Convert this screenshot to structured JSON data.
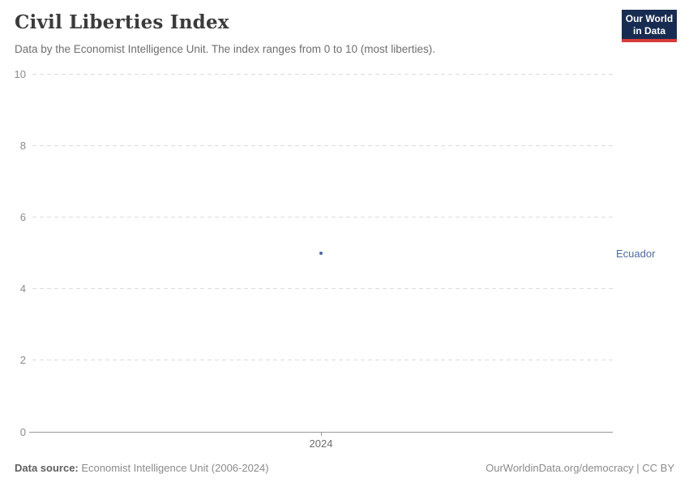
{
  "header": {
    "title": "Civil Liberties Index",
    "subtitle": "Data by the Economist Intelligence Unit. The index ranges from 0 to 10 (most liberties).",
    "logo": {
      "line1": "Our World",
      "line2": "in Data"
    }
  },
  "chart_data": {
    "type": "scatter",
    "title": "Civil Liberties Index",
    "subtitle": "Data by the Economist Intelligence Unit. The index ranges from 0 to 10 (most liberties).",
    "series": [
      {
        "name": "Ecuador",
        "color": "#4c6a9c",
        "points": [
          {
            "x": 2024,
            "y": 5.0
          }
        ]
      }
    ],
    "xticks": [
      "2024"
    ],
    "yticks": [
      0,
      2,
      4,
      6,
      8,
      10
    ],
    "ylim": [
      0,
      10
    ],
    "xlabel": "",
    "ylabel": "",
    "grid": "horizontal-dashed",
    "legend": "entity-label-right-of-point"
  },
  "footer": {
    "source_label": "Data source:",
    "source_text": " Economist Intelligence Unit (2006-2024)",
    "link_text": "OurWorldinData.org/democracy | CC BY"
  },
  "colors": {
    "logo_navy": "#182c51",
    "logo_red": "#d93a3a",
    "series_blue": "#4c6a9c",
    "grid": "#dcdcdc",
    "axis": "#9a9a9a"
  }
}
